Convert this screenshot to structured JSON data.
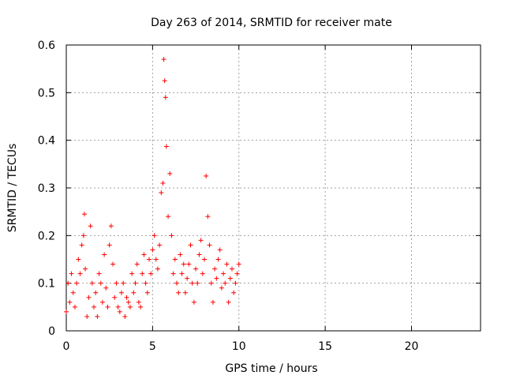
{
  "chart_data": {
    "type": "scatter",
    "title": "Day 263 of 2014, SRMTID for receiver mate",
    "xlabel": "GPS time / hours",
    "ylabel": "SRMTID / TECUs",
    "xlim": [
      0,
      24
    ],
    "ylim": [
      0,
      0.6
    ],
    "xticks": [
      0,
      5,
      10,
      15,
      20
    ],
    "xtick_labels": [
      "0",
      "5",
      "10",
      "15",
      "20"
    ],
    "yticks": [
      0,
      0.1,
      0.2,
      0.3,
      0.4,
      0.5,
      0.6
    ],
    "ytick_labels": [
      "0",
      "0.1",
      "0.2",
      "0.3",
      "0.4",
      "0.5",
      "0.6"
    ],
    "grid": true,
    "marker": "+",
    "series": [
      {
        "name": "SRMTID",
        "color": "#ff0000",
        "x": [
          0.0,
          0.1,
          0.2,
          0.3,
          0.4,
          0.5,
          0.6,
          0.7,
          0.8,
          0.9,
          1.0,
          1.05,
          1.1,
          1.2,
          1.3,
          1.4,
          1.5,
          1.6,
          1.7,
          1.8,
          1.9,
          2.0,
          2.1,
          2.2,
          2.3,
          2.4,
          2.5,
          2.6,
          2.7,
          2.8,
          2.9,
          3.0,
          3.1,
          3.2,
          3.3,
          3.4,
          3.5,
          3.6,
          3.7,
          3.8,
          3.9,
          4.0,
          4.1,
          4.2,
          4.3,
          4.4,
          4.5,
          4.6,
          4.7,
          4.8,
          4.9,
          5.0,
          5.1,
          5.2,
          5.3,
          5.4,
          5.5,
          5.6,
          5.65,
          5.7,
          5.75,
          5.8,
          5.9,
          6.0,
          6.1,
          6.2,
          6.3,
          6.4,
          6.5,
          6.6,
          6.7,
          6.8,
          6.9,
          7.0,
          7.1,
          7.2,
          7.3,
          7.4,
          7.5,
          7.6,
          7.7,
          7.8,
          7.9,
          8.0,
          8.1,
          8.2,
          8.3,
          8.4,
          8.5,
          8.6,
          8.7,
          8.8,
          8.9,
          9.0,
          9.1,
          9.2,
          9.3,
          9.4,
          9.5,
          9.6,
          9.7,
          9.8,
          9.9,
          10.0
        ],
        "y": [
          0.04,
          0.1,
          0.06,
          0.12,
          0.08,
          0.05,
          0.1,
          0.15,
          0.12,
          0.18,
          0.2,
          0.245,
          0.13,
          0.03,
          0.07,
          0.22,
          0.1,
          0.05,
          0.08,
          0.03,
          0.12,
          0.1,
          0.06,
          0.16,
          0.09,
          0.05,
          0.18,
          0.22,
          0.14,
          0.07,
          0.1,
          0.05,
          0.04,
          0.08,
          0.1,
          0.03,
          0.07,
          0.06,
          0.05,
          0.12,
          0.08,
          0.1,
          0.14,
          0.06,
          0.05,
          0.12,
          0.16,
          0.1,
          0.08,
          0.15,
          0.12,
          0.17,
          0.2,
          0.15,
          0.13,
          0.18,
          0.29,
          0.31,
          0.57,
          0.525,
          0.49,
          0.387,
          0.24,
          0.33,
          0.2,
          0.12,
          0.15,
          0.1,
          0.08,
          0.16,
          0.12,
          0.14,
          0.08,
          0.11,
          0.14,
          0.18,
          0.1,
          0.06,
          0.13,
          0.1,
          0.16,
          0.19,
          0.12,
          0.15,
          0.325,
          0.24,
          0.18,
          0.1,
          0.06,
          0.13,
          0.11,
          0.15,
          0.17,
          0.09,
          0.12,
          0.1,
          0.14,
          0.06,
          0.11,
          0.13,
          0.08,
          0.1,
          0.12,
          0.14
        ]
      }
    ]
  }
}
